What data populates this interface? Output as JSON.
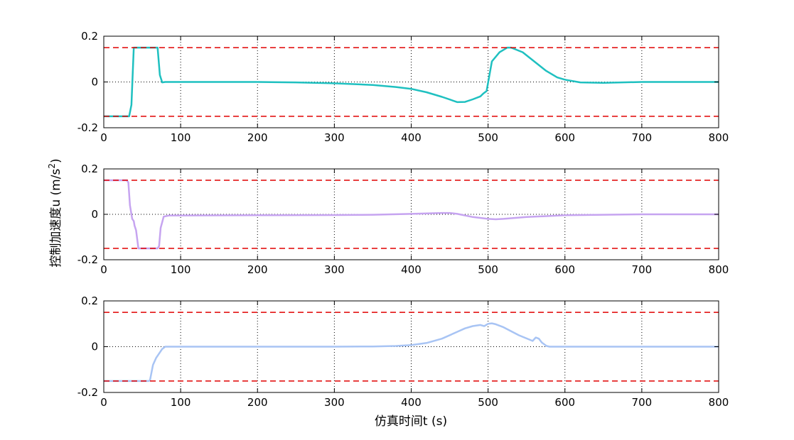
{
  "figure": {
    "ylabel": "控制加速度u (m/s",
    "ylabel_sup": "2",
    "ylabel_close": ")",
    "xlabel": "仿真时间t (s)"
  },
  "chart_data": [
    {
      "type": "line",
      "xlim": [
        0,
        800
      ],
      "ylim": [
        -0.2,
        0.2
      ],
      "xticks": [
        0,
        100,
        200,
        300,
        400,
        500,
        600,
        700,
        800
      ],
      "yticks": [
        -0.2,
        0,
        0.2
      ],
      "ytick_labels": [
        "-0.2",
        "0",
        "0.2"
      ],
      "grid": "dotted",
      "limits": [
        0.15,
        -0.15
      ],
      "limit_color": "#e00000",
      "series": [
        {
          "color": "#1fc0c0",
          "x": [
            0,
            33,
            36,
            39,
            42,
            70,
            73,
            76,
            80,
            90,
            100,
            200,
            250,
            300,
            350,
            380,
            400,
            420,
            440,
            460,
            470,
            480,
            490,
            494,
            498,
            505,
            515,
            525,
            530,
            545,
            560,
            575,
            590,
            600,
            620,
            650,
            700,
            800
          ],
          "y": [
            -0.15,
            -0.15,
            -0.1,
            0.15,
            0.15,
            0.15,
            0.03,
            -0.002,
            0,
            0,
            0,
            0,
            -0.002,
            -0.006,
            -0.013,
            -0.022,
            -0.03,
            -0.045,
            -0.065,
            -0.088,
            -0.087,
            -0.076,
            -0.063,
            -0.05,
            -0.04,
            0.09,
            0.13,
            0.15,
            0.15,
            0.13,
            0.09,
            0.05,
            0.02,
            0.01,
            -0.002,
            -0.004,
            0,
            0
          ]
        },
        {
          "color": "#c6a4f0",
          "x": [
            0,
            30,
            32,
            34,
            37,
            39,
            40,
            42,
            45,
            50,
            70,
            72,
            74,
            78,
            85,
            100,
            200,
            300,
            350,
            400,
            420,
            440,
            450,
            460,
            480,
            500,
            510,
            520,
            550,
            600,
            650,
            700,
            800
          ],
          "y": [
            0.15,
            0.15,
            0.14,
            0.04,
            -0.02,
            -0.03,
            -0.05,
            -0.07,
            -0.15,
            -0.15,
            -0.15,
            -0.14,
            -0.06,
            -0.01,
            -0.005,
            -0.005,
            -0.004,
            -0.003,
            -0.002,
            0.002,
            0.004,
            0.006,
            0.006,
            0.002,
            -0.012,
            -0.02,
            -0.022,
            -0.02,
            -0.012,
            -0.004,
            -0.002,
            0,
            0
          ]
        },
        {
          "color": "#a8c4f4",
          "x": [
            0,
            58,
            60,
            64,
            68,
            72,
            76,
            80,
            100,
            200,
            300,
            350,
            380,
            400,
            420,
            440,
            460,
            470,
            480,
            490,
            495,
            500,
            505,
            510,
            520,
            540,
            558,
            562,
            566,
            570,
            576,
            580,
            600,
            800
          ],
          "y": [
            -0.15,
            -0.15,
            -0.148,
            -0.08,
            -0.05,
            -0.03,
            -0.01,
            0,
            0,
            0,
            0,
            0.001,
            0.003,
            0.007,
            0.016,
            0.035,
            0.065,
            0.08,
            0.09,
            0.095,
            0.09,
            0.1,
            0.102,
            0.098,
            0.085,
            0.05,
            0.025,
            0.04,
            0.035,
            0.018,
            0.003,
            0,
            0,
            0
          ]
        }
      ]
    }
  ]
}
